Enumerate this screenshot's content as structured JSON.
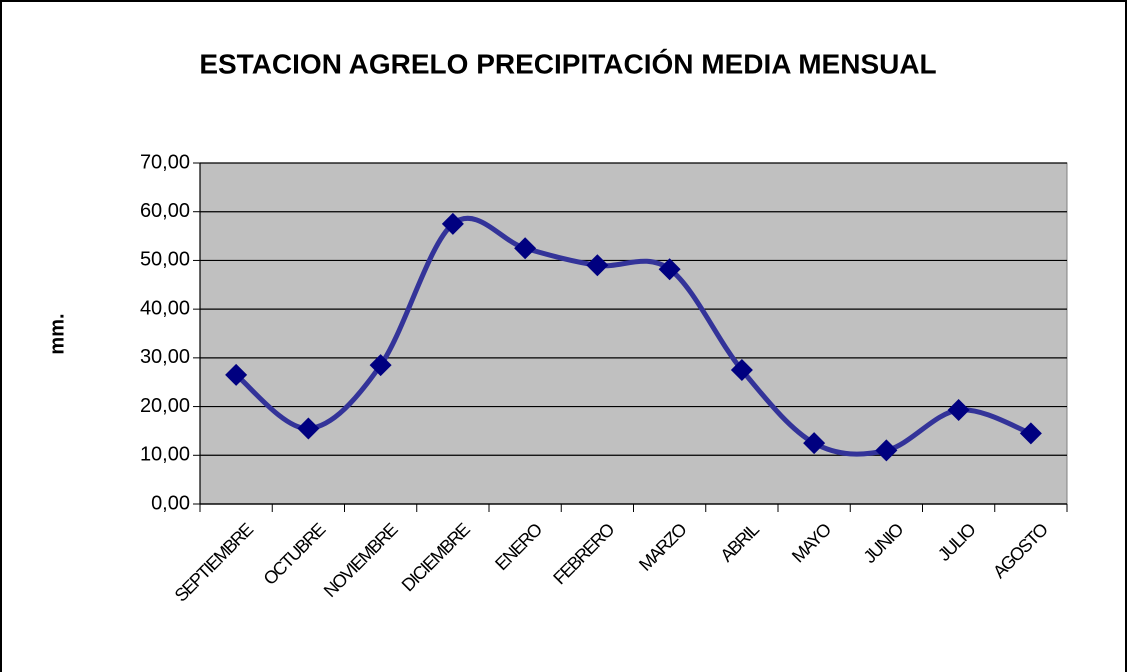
{
  "chart_data": {
    "type": "line",
    "title": "ESTACION AGRELO PRECIPITACIÓN MEDIA MENSUAL",
    "y_label": "mm.",
    "categories": [
      "SEPTIEMBRE",
      "OCTUBRE",
      "NOVIEMBRE",
      "DICIEMBRE",
      "ENERO",
      "FEBRERO",
      "MARZO",
      "ABRIL",
      "MAYO",
      "JUNIO",
      "JULIO",
      "AGOSTO"
    ],
    "values": [
      26.5,
      15.5,
      28.5,
      57.5,
      52.5,
      49,
      48.2,
      27.5,
      12.5,
      11,
      19.3,
      14.5
    ],
    "color": "#333399",
    "marker": "diamond",
    "marker_color": "#000080",
    "smooth": true,
    "ylim": [
      0,
      70
    ],
    "yticks": [
      {
        "value": 0,
        "label": "0,00"
      },
      {
        "value": 10,
        "label": "10,00"
      },
      {
        "value": 20,
        "label": "20,00"
      },
      {
        "value": 30,
        "label": "30,00"
      },
      {
        "value": 40,
        "label": "40,00"
      },
      {
        "value": 50,
        "label": "50,00"
      },
      {
        "value": 60,
        "label": "60,00"
      },
      {
        "value": 70,
        "label": "70,00"
      }
    ],
    "grid": true,
    "plot_background": "#c0c0c0"
  }
}
